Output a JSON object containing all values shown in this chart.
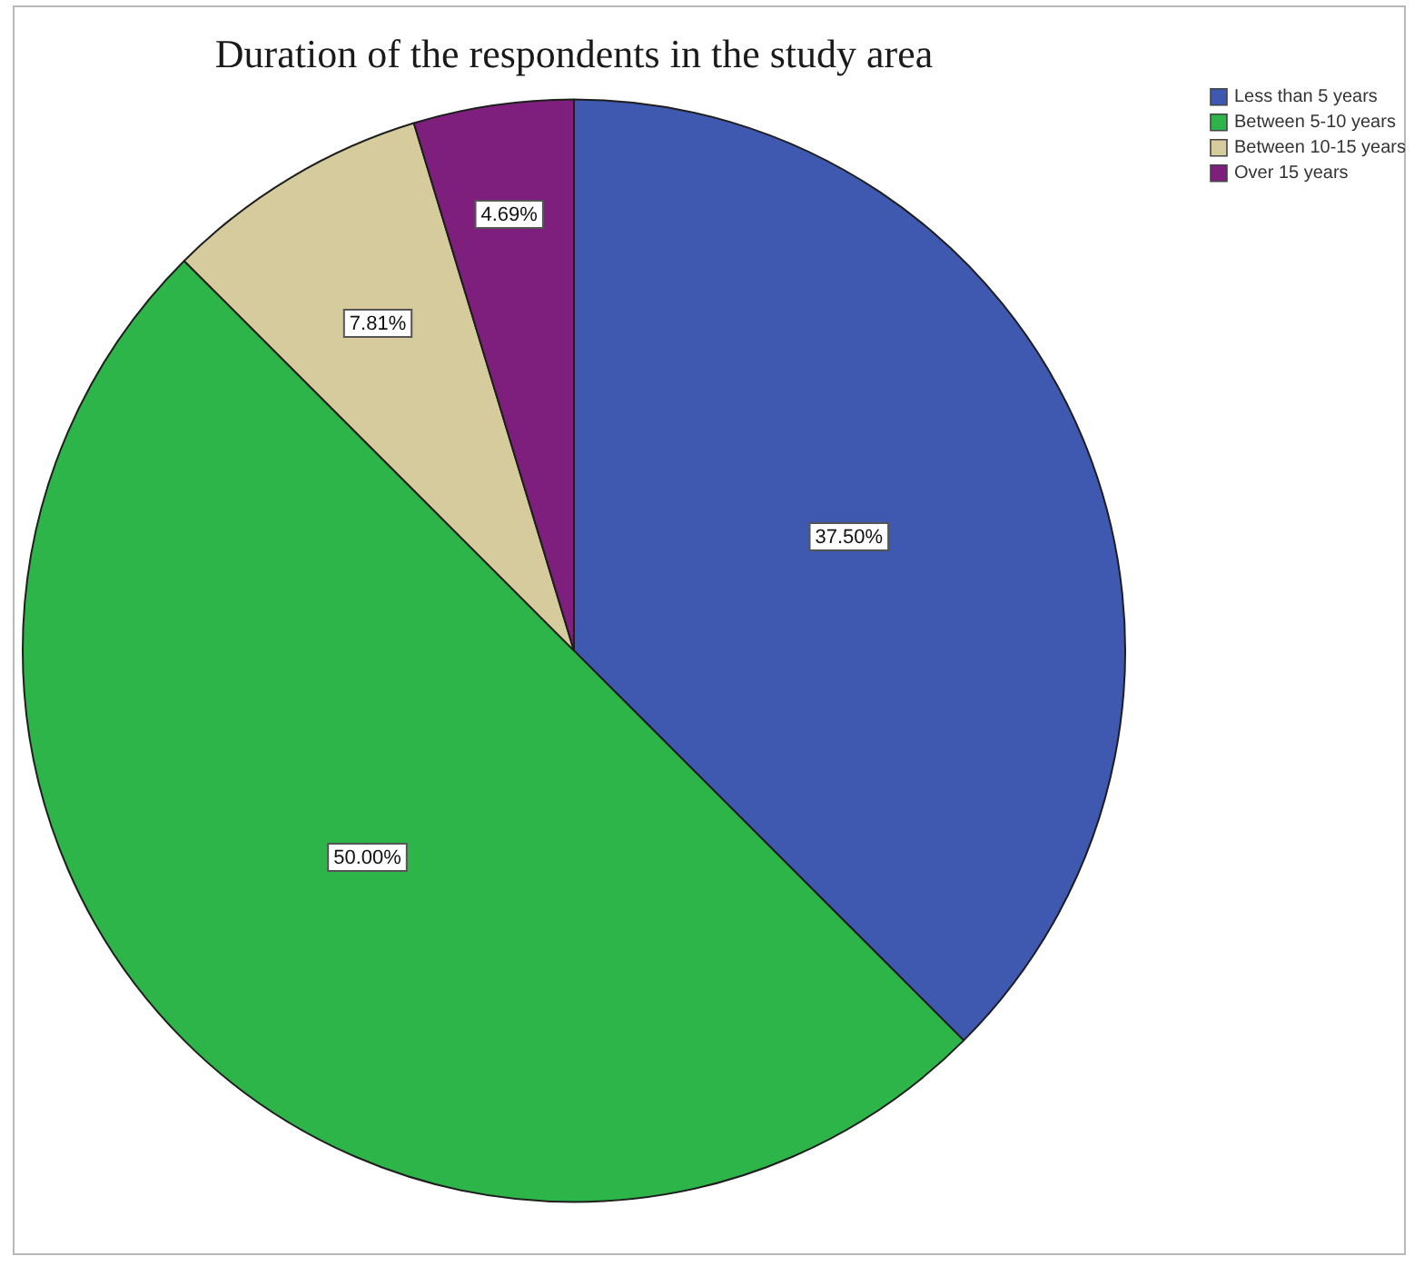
{
  "chart_data": {
    "type": "pie",
    "title": "Duration of the respondents in the study area",
    "categories": [
      "Less than 5 years",
      "Between 5-10 years",
      "Between 10-15 years",
      "Over 15 years"
    ],
    "values": [
      37.5,
      50,
      7.81,
      4.69
    ],
    "colors": [
      "#3f58b0",
      "#2db54a",
      "#d6cb9c",
      "#7e1f7e"
    ],
    "value_labels": [
      "37.50%",
      "50.00%",
      "7.81%",
      "4.69%"
    ],
    "legend": "top right"
  }
}
